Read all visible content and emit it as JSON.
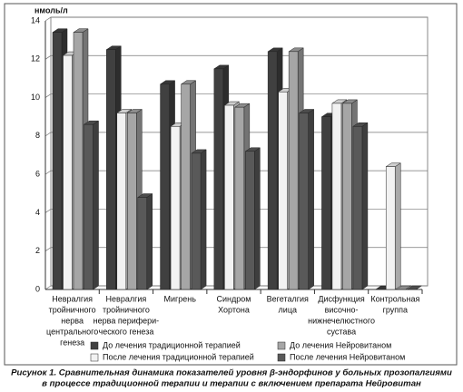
{
  "chart_data": {
    "type": "bar3d",
    "y_label": "нмоль/л",
    "caption": [
      "Рисунок 1. Сравнительная динамика показателей уровня β-эндорфинов у больных прозопалгиями",
      "в процессе традиционной терапии и терапии с включением препарата Нейровитан"
    ],
    "categories": [
      [
        "Невралгия",
        "тройничного",
        "нерва",
        "центрального",
        "генеза"
      ],
      [
        "Невралгия",
        "тройничного",
        "нерва перифери-",
        "ческого генеза"
      ],
      [
        "Мигрень"
      ],
      [
        "Синдром",
        "Хортона"
      ],
      [
        "Вегеталгия",
        "лица"
      ],
      [
        "Дисфункция",
        "височно-",
        "нижнечелюстного",
        "сустава"
      ],
      [
        "Контрольная",
        "группа"
      ]
    ],
    "series": [
      {
        "name": "До лечения традиционной терапией",
        "color": "#404040",
        "values": [
          13.4,
          12.5,
          10.7,
          11.5,
          12.4,
          9.0,
          0
        ]
      },
      {
        "name": "После лечения традиционной терапией",
        "color": "#f2f2f2",
        "values": [
          12.2,
          9.2,
          8.5,
          9.6,
          10.3,
          9.7,
          6.4
        ]
      },
      {
        "name": "До лечения Нейровитаном",
        "color": "#a6a6a6",
        "values": [
          13.4,
          9.2,
          10.7,
          9.5,
          12.4,
          9.7,
          0
        ]
      },
      {
        "name": "После лечения Нейровитаном",
        "color": "#595959",
        "values": [
          8.6,
          4.8,
          7.1,
          7.2,
          9.2,
          8.5,
          0
        ]
      }
    ],
    "ylim": [
      0,
      14
    ],
    "yticks": [
      0,
      2,
      4,
      6,
      8,
      10,
      12,
      14
    ],
    "grid": true
  }
}
